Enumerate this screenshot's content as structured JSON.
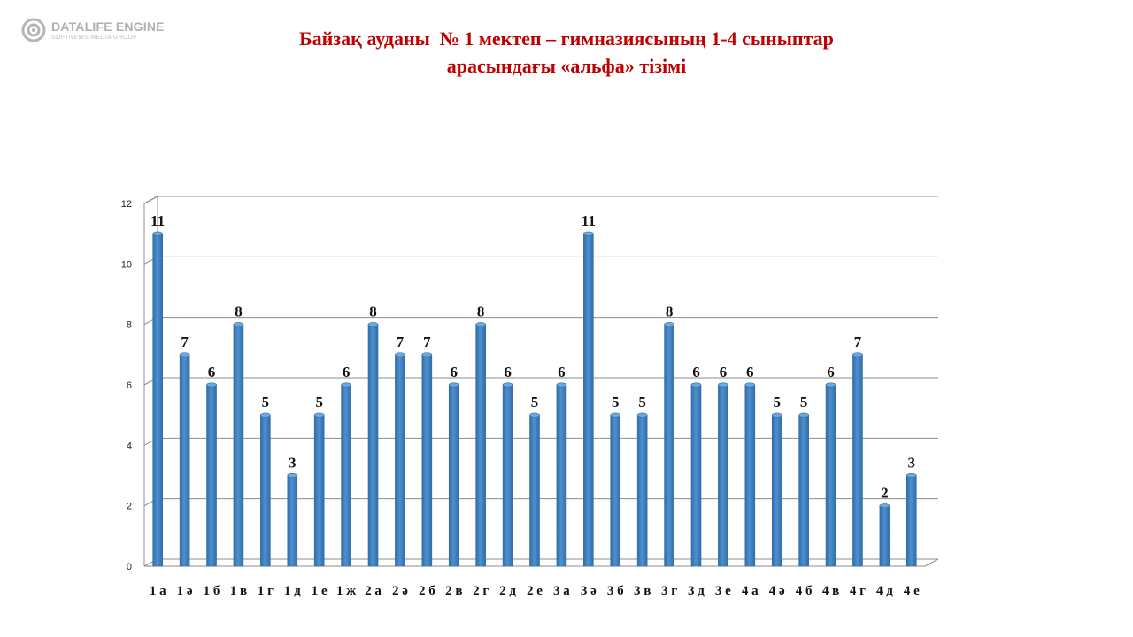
{
  "watermark": {
    "name": "DATALIFE ENGINE",
    "tagline": "SOFTNEWS MEDIA GROUP"
  },
  "colors": {
    "title": "#c00000",
    "bar": "#4f8fcf",
    "bar_dark": "#2f6ea8",
    "grid": "#8c8c8c"
  },
  "chart_data": {
    "type": "bar",
    "title_lines": [
      "Байзақ ауданы  № 1 мектеп – гимназиясының 1-4 сыныптар",
      "арасындағы «альфа» тізімі"
    ],
    "categories": [
      "1 а",
      "1 ә",
      "1 б",
      "1 в",
      "1 г",
      "1 д",
      "1 е",
      "1 ж",
      "2 а",
      "2 ә",
      "2 б",
      "2 в",
      "2 г",
      "2 д",
      "2 е",
      "3 а",
      "3 ә",
      "3 б",
      "3 в",
      "3 г",
      "3 д",
      "3 е",
      "4 а",
      "4 ә",
      "4 б",
      "4 в",
      "4 г",
      "4 д",
      "4 е"
    ],
    "values": [
      11,
      7,
      6,
      8,
      5,
      3,
      5,
      6,
      8,
      7,
      7,
      6,
      8,
      6,
      5,
      6,
      11,
      5,
      5,
      8,
      6,
      6,
      6,
      5,
      5,
      6,
      7,
      2,
      3
    ],
    "ylim": [
      0,
      12
    ],
    "yticks": [
      "0",
      "2",
      "4",
      "6",
      "8",
      "10",
      "12"
    ],
    "grid": true,
    "xlabel": "",
    "ylabel": ""
  }
}
